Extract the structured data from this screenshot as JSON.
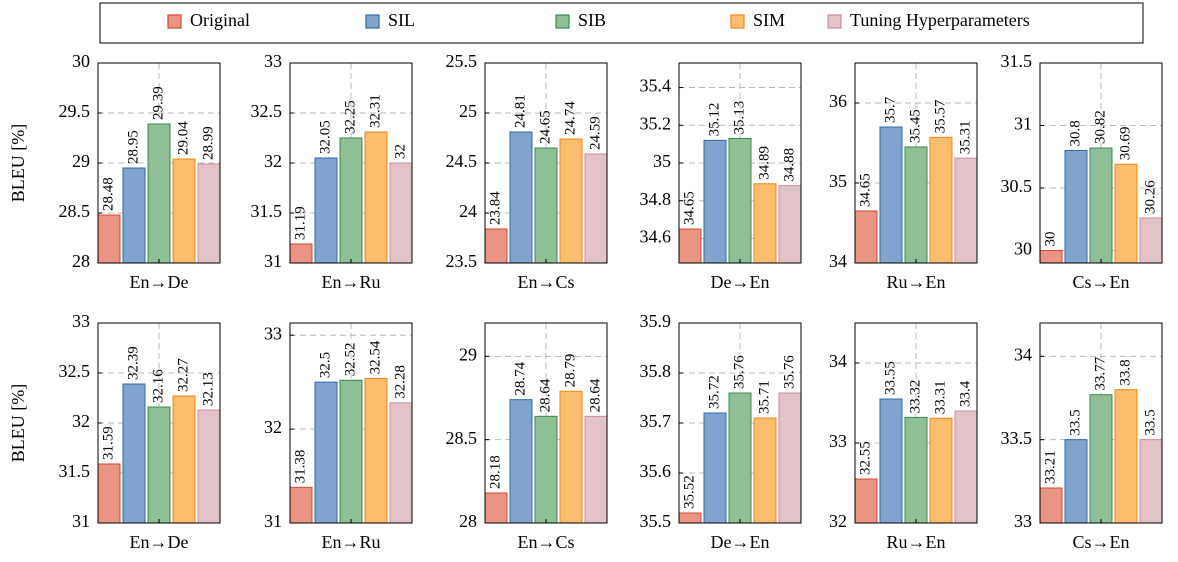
{
  "legend": [
    {
      "name": "Original",
      "color": "#ea9584",
      "edgecolor": "#d04a35"
    },
    {
      "name": "SIL",
      "color": "#7fa5cf",
      "edgecolor": "#3568a3"
    },
    {
      "name": "SIB",
      "color": "#8ebf97",
      "edgecolor": "#3d8a50"
    },
    {
      "name": "SIM",
      "color": "#fdbd6e",
      "edgecolor": "#f0871a"
    },
    {
      "name": "Tuning Hyperparameters",
      "color": "#e2c3c7",
      "edgecolor": "#c98ea0"
    }
  ],
  "ylabel": "BLEU [%]",
  "chart_data": [
    {
      "type": "bar",
      "xlabel": "En→De",
      "ylim": [
        28,
        30
      ],
      "yticks": [
        28,
        28.5,
        29,
        29.5,
        30
      ],
      "values": [
        28.48,
        28.95,
        29.39,
        29.04,
        28.99
      ]
    },
    {
      "type": "bar",
      "xlabel": "En→Ru",
      "ylim": [
        31,
        33
      ],
      "yticks": [
        31,
        31.5,
        32,
        32.5,
        33
      ],
      "values": [
        31.19,
        32.05,
        32.25,
        32.31,
        32
      ]
    },
    {
      "type": "bar",
      "xlabel": "En→Cs",
      "ylim": [
        23.5,
        25.5
      ],
      "yticks": [
        23.5,
        24,
        24.5,
        25,
        25.5
      ],
      "values": [
        23.84,
        24.81,
        24.65,
        24.74,
        24.59
      ]
    },
    {
      "type": "bar",
      "xlabel": "De→En",
      "ylim": [
        34.47,
        35.53
      ],
      "yticks": [
        34.6,
        34.8,
        35,
        35.2,
        35.4
      ],
      "values": [
        34.65,
        35.12,
        35.13,
        34.89,
        34.88
      ]
    },
    {
      "type": "bar",
      "xlabel": "Ru→En",
      "ylim": [
        34,
        36.5
      ],
      "yticks": [
        34,
        35,
        36
      ],
      "values": [
        34.65,
        35.7,
        35.45,
        35.57,
        35.31
      ]
    },
    {
      "type": "bar",
      "xlabel": "Cs→En",
      "ylim": [
        29.9,
        31.5
      ],
      "yticks": [
        30,
        30.5,
        31,
        31.5
      ],
      "values": [
        30,
        30.8,
        30.82,
        30.69,
        30.26
      ]
    },
    {
      "type": "bar",
      "xlabel": "En→De",
      "ylim": [
        31,
        33
      ],
      "yticks": [
        31,
        31.5,
        32,
        32.5,
        33
      ],
      "values": [
        31.59,
        32.39,
        32.16,
        32.27,
        32.13
      ]
    },
    {
      "type": "bar",
      "xlabel": "En→Ru",
      "ylim": [
        31,
        33.13
      ],
      "yticks": [
        31,
        32,
        33
      ],
      "values": [
        31.38,
        32.5,
        32.52,
        32.54,
        32.28
      ]
    },
    {
      "type": "bar",
      "xlabel": "En→Cs",
      "ylim": [
        28,
        29.2
      ],
      "yticks": [
        28,
        28.5,
        29
      ],
      "values": [
        28.18,
        28.74,
        28.64,
        28.79,
        28.64
      ]
    },
    {
      "type": "bar",
      "xlabel": "De→En",
      "ylim": [
        35.5,
        35.9
      ],
      "yticks": [
        35.5,
        35.6,
        35.7,
        35.8,
        35.9
      ],
      "values": [
        35.52,
        35.72,
        35.76,
        35.71,
        35.76
      ]
    },
    {
      "type": "bar",
      "xlabel": "Ru→En",
      "ylim": [
        32,
        34.5
      ],
      "yticks": [
        32,
        33,
        34
      ],
      "values": [
        32.55,
        33.55,
        33.32,
        33.31,
        33.4
      ]
    },
    {
      "type": "bar",
      "xlabel": "Cs→En",
      "ylim": [
        33,
        34.2
      ],
      "yticks": [
        33,
        33.5,
        34
      ],
      "values": [
        33.21,
        33.5,
        33.77,
        33.8,
        33.5
      ]
    }
  ]
}
